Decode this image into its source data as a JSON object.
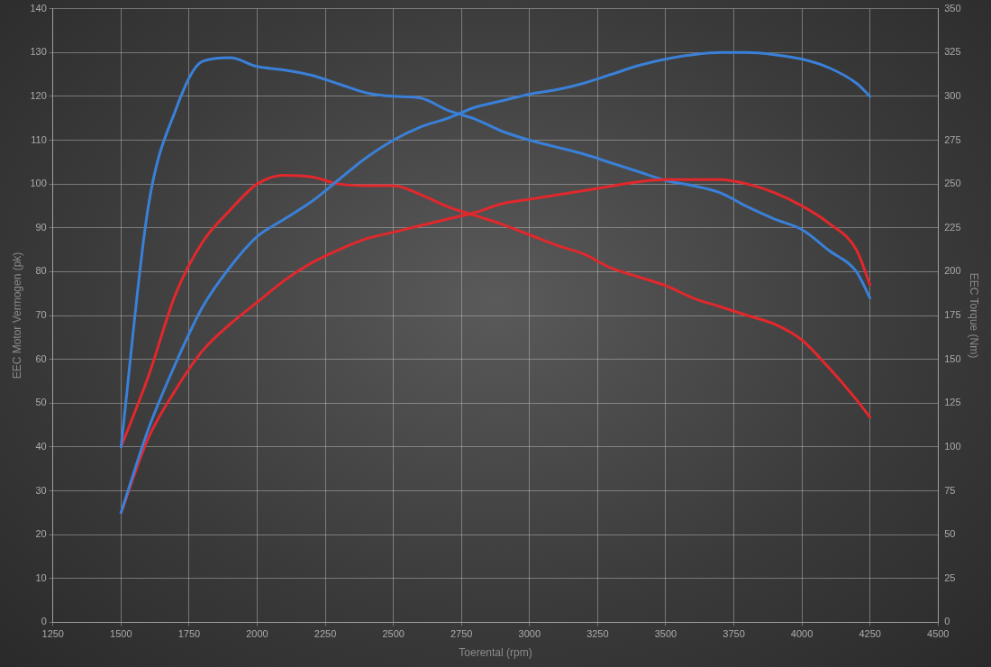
{
  "chart_data": {
    "type": "line",
    "xlabel": "Toerental (rpm)",
    "ylabel": "EEC Motor Vermogen (pk)",
    "y2label": "EEC Torque (Nm)",
    "x": [
      1500,
      1600,
      1700,
      1800,
      1900,
      2000,
      2100,
      2200,
      2300,
      2400,
      2500,
      2600,
      2700,
      2800,
      2900,
      3000,
      3100,
      3200,
      3300,
      3400,
      3500,
      3600,
      3700,
      3800,
      3900,
      4000,
      4100,
      4200,
      4250
    ],
    "series": [
      {
        "color": "#3a80d8",
        "values": [
          25,
          44,
          59,
          72,
          81,
          88,
          92,
          96,
          101,
          106,
          110,
          113,
          115,
          117.5,
          119,
          120.5,
          121.5,
          123,
          125,
          127,
          128.5,
          129.5,
          130,
          130,
          129.5,
          128.5,
          126.5,
          123,
          120
        ]
      },
      {
        "color": "#e2282c",
        "values": [
          25,
          42,
          53,
          62,
          68,
          73,
          78,
          82,
          85,
          87.5,
          89,
          90.5,
          92,
          93.5,
          95.5,
          96.5,
          97.5,
          98.5,
          99.5,
          100.5,
          101,
          101,
          101,
          100,
          98,
          95,
          91,
          85,
          77
        ]
      },
      {
        "color": "#3a80d8",
        "axis": "y2",
        "values": [
          100,
          237,
          292,
          320,
          322,
          317,
          315,
          312,
          307,
          302,
          300,
          299,
          292,
          287,
          280,
          275,
          271,
          267,
          262,
          257,
          252,
          249,
          245,
          237,
          230,
          224,
          212,
          200,
          185
        ]
      },
      {
        "color": "#e2282c",
        "axis": "y2",
        "values": [
          100,
          140,
          187,
          217,
          235,
          250,
          255,
          254,
          250,
          249,
          249,
          244,
          237,
          232,
          227,
          221,
          215,
          210,
          202,
          197,
          192,
          185,
          180,
          175,
          170,
          161,
          145,
          127,
          117
        ]
      }
    ],
    "xlim": [
      1250,
      4500
    ],
    "xticks": [
      1250,
      1500,
      1750,
      2000,
      2250,
      2500,
      2750,
      3000,
      3250,
      3500,
      3750,
      4000,
      4250,
      4500
    ],
    "ylim": [
      0,
      140
    ],
    "yticks": [
      0,
      10,
      20,
      30,
      40,
      50,
      60,
      70,
      80,
      90,
      100,
      110,
      120,
      130,
      140
    ],
    "y2lim": [
      0,
      350
    ],
    "y2ticks": [
      0,
      25,
      50,
      75,
      100,
      125,
      150,
      175,
      200,
      225,
      250,
      275,
      300,
      325,
      350
    ],
    "grid": true,
    "legend": false,
    "marker": "none",
    "line_style": "solid"
  }
}
